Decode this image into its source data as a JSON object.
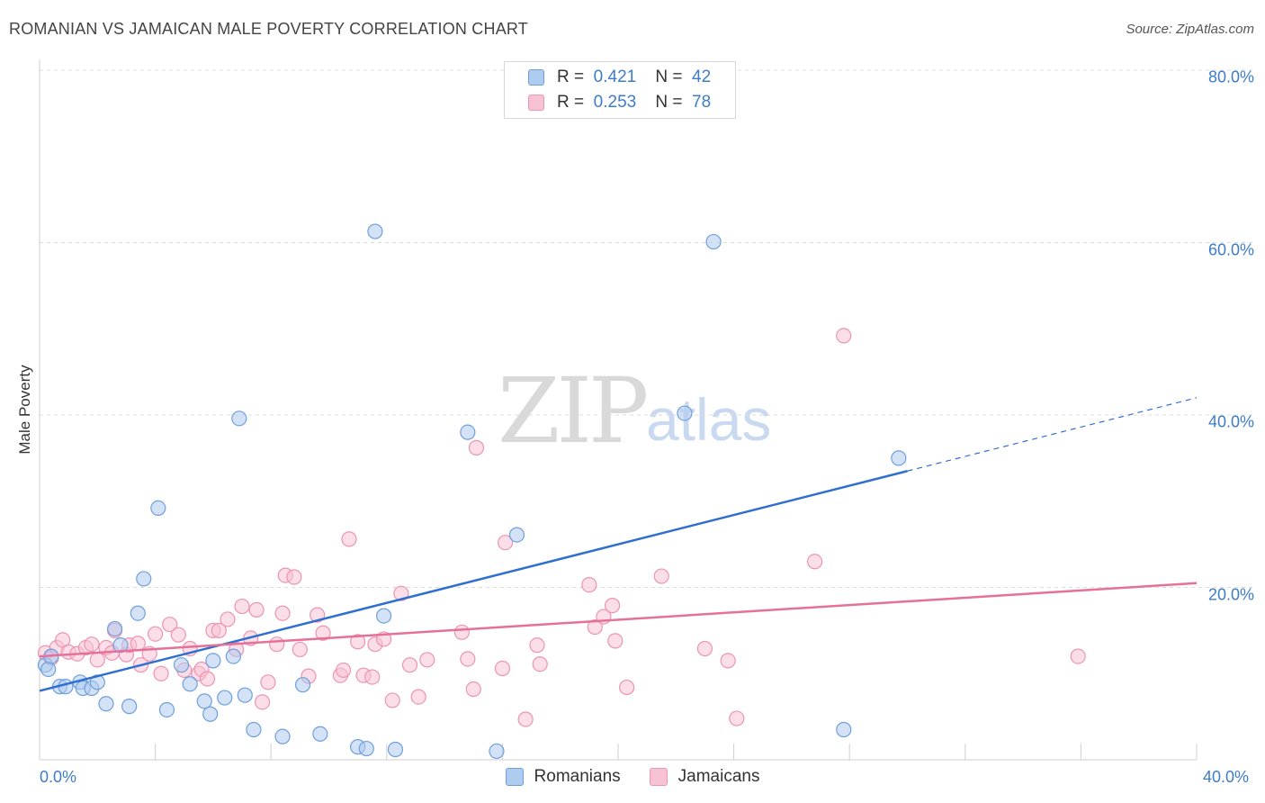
{
  "title": "ROMANIAN VS JAMAICAN MALE POVERTY CORRELATION CHART",
  "source": "Source: ZipAtlas.com",
  "watermark": {
    "zip": "ZIP",
    "atlas": "atlas"
  },
  "legend_top": {
    "rows": [
      {
        "r_label": "R =",
        "r_value": "0.421",
        "n_label": "N =",
        "n_value": "42"
      },
      {
        "r_label": "R =",
        "r_value": "0.253",
        "n_label": "N =",
        "n_value": "78"
      }
    ]
  },
  "legend_bottom": {
    "series1": "Romanians",
    "series2": "Jamaicans"
  },
  "colors": {
    "romanian_fill": "#aecbf0",
    "romanian_stroke": "#6f9fdb",
    "romanian_line": "#2f6fd0",
    "jamaican_fill": "#f7c2d3",
    "jamaican_stroke": "#ec94b3",
    "jamaican_line": "#e5709a",
    "tick_text": "#3d7cc9",
    "grid": "#dcdcdc"
  },
  "chart_data": {
    "type": "scatter",
    "title": "ROMANIAN VS JAMAICAN MALE POVERTY CORRELATION CHART",
    "xlabel": "",
    "ylabel": "Male Poverty",
    "xlim": [
      0,
      40
    ],
    "ylim": [
      0,
      80
    ],
    "x_tick_labels": [
      "0.0%",
      "40.0%"
    ],
    "y_tick_labels": [
      "20.0%",
      "40.0%",
      "60.0%",
      "80.0%"
    ],
    "y_ticks": [
      20,
      40,
      60,
      80
    ],
    "grid": true,
    "legend_position": "top-center",
    "series": [
      {
        "name": "Romanians",
        "r": 0.421,
        "n": 42,
        "trend": {
          "x0": 0,
          "y0": 8.0,
          "x1": 30.0,
          "y1": 33.5,
          "dashed_to_x": 40,
          "dashed_y1": 42.0
        },
        "points": [
          [
            0.2,
            11.0
          ],
          [
            0.3,
            10.5
          ],
          [
            0.4,
            12.0
          ],
          [
            0.7,
            8.5
          ],
          [
            0.9,
            8.5
          ],
          [
            1.4,
            9.0
          ],
          [
            1.5,
            8.3
          ],
          [
            1.8,
            8.3
          ],
          [
            2.0,
            9.0
          ],
          [
            2.3,
            6.5
          ],
          [
            2.6,
            15.2
          ],
          [
            2.8,
            13.3
          ],
          [
            3.1,
            6.2
          ],
          [
            3.4,
            17.0
          ],
          [
            3.6,
            21.0
          ],
          [
            4.1,
            29.2
          ],
          [
            4.4,
            5.8
          ],
          [
            4.9,
            11.0
          ],
          [
            5.2,
            8.8
          ],
          [
            5.7,
            6.8
          ],
          [
            5.9,
            5.3
          ],
          [
            6.4,
            7.2
          ],
          [
            6.7,
            12.0
          ],
          [
            6.9,
            39.6
          ],
          [
            7.1,
            7.5
          ],
          [
            7.4,
            3.5
          ],
          [
            8.4,
            2.7
          ],
          [
            9.1,
            8.7
          ],
          [
            9.7,
            3.0
          ],
          [
            11.0,
            1.5
          ],
          [
            11.9,
            16.7
          ],
          [
            11.6,
            61.3
          ],
          [
            12.3,
            1.2
          ],
          [
            14.8,
            38.0
          ],
          [
            15.8,
            1.0
          ],
          [
            16.5,
            26.1
          ],
          [
            22.3,
            40.2
          ],
          [
            23.3,
            60.1
          ],
          [
            11.3,
            1.3
          ],
          [
            27.8,
            3.5
          ],
          [
            29.7,
            35.0
          ],
          [
            6.0,
            11.5
          ]
        ]
      },
      {
        "name": "Jamaicans",
        "r": 0.253,
        "n": 78,
        "trend": {
          "x0": 0,
          "y0": 12.0,
          "x1": 40,
          "y1": 20.5
        },
        "points": [
          [
            0.2,
            12.4
          ],
          [
            0.4,
            11.8
          ],
          [
            0.6,
            13.0
          ],
          [
            0.8,
            13.9
          ],
          [
            1.0,
            12.5
          ],
          [
            1.3,
            12.3
          ],
          [
            1.6,
            13.0
          ],
          [
            1.8,
            13.4
          ],
          [
            2.0,
            11.6
          ],
          [
            2.3,
            13.0
          ],
          [
            2.5,
            12.4
          ],
          [
            2.6,
            15.0
          ],
          [
            3.0,
            12.2
          ],
          [
            3.1,
            13.3
          ],
          [
            3.4,
            13.5
          ],
          [
            3.5,
            11.0
          ],
          [
            3.8,
            12.3
          ],
          [
            4.0,
            14.6
          ],
          [
            4.2,
            10.0
          ],
          [
            4.5,
            15.7
          ],
          [
            4.8,
            14.5
          ],
          [
            5.0,
            10.4
          ],
          [
            5.2,
            12.9
          ],
          [
            5.5,
            10.0
          ],
          [
            5.6,
            10.5
          ],
          [
            5.8,
            9.4
          ],
          [
            6.0,
            15.0
          ],
          [
            6.2,
            15.0
          ],
          [
            6.5,
            16.3
          ],
          [
            6.8,
            12.8
          ],
          [
            7.0,
            17.8
          ],
          [
            7.3,
            14.1
          ],
          [
            7.5,
            17.4
          ],
          [
            7.7,
            6.7
          ],
          [
            7.9,
            9.0
          ],
          [
            8.2,
            13.4
          ],
          [
            8.4,
            17.0
          ],
          [
            8.5,
            21.4
          ],
          [
            8.8,
            21.2
          ],
          [
            9.0,
            12.8
          ],
          [
            9.3,
            9.7
          ],
          [
            9.6,
            16.8
          ],
          [
            9.8,
            14.7
          ],
          [
            10.4,
            9.8
          ],
          [
            10.5,
            10.4
          ],
          [
            10.7,
            25.6
          ],
          [
            11.0,
            13.7
          ],
          [
            11.2,
            9.8
          ],
          [
            11.5,
            9.6
          ],
          [
            11.6,
            13.4
          ],
          [
            11.9,
            14.0
          ],
          [
            12.2,
            6.9
          ],
          [
            12.5,
            19.3
          ],
          [
            12.8,
            11.0
          ],
          [
            13.1,
            7.3
          ],
          [
            13.4,
            11.6
          ],
          [
            14.6,
            14.8
          ],
          [
            14.8,
            11.7
          ],
          [
            15.0,
            8.2
          ],
          [
            15.1,
            36.2
          ],
          [
            16.1,
            25.2
          ],
          [
            16.0,
            10.6
          ],
          [
            16.8,
            4.7
          ],
          [
            17.2,
            13.3
          ],
          [
            17.3,
            11.1
          ],
          [
            19.0,
            20.3
          ],
          [
            19.2,
            15.4
          ],
          [
            19.5,
            16.6
          ],
          [
            19.8,
            17.9
          ],
          [
            19.9,
            13.8
          ],
          [
            20.3,
            8.4
          ],
          [
            21.5,
            21.3
          ],
          [
            23.0,
            12.9
          ],
          [
            23.8,
            11.5
          ],
          [
            24.1,
            4.8
          ],
          [
            26.8,
            23.0
          ],
          [
            27.8,
            49.2
          ],
          [
            35.9,
            12.0
          ]
        ]
      }
    ]
  }
}
